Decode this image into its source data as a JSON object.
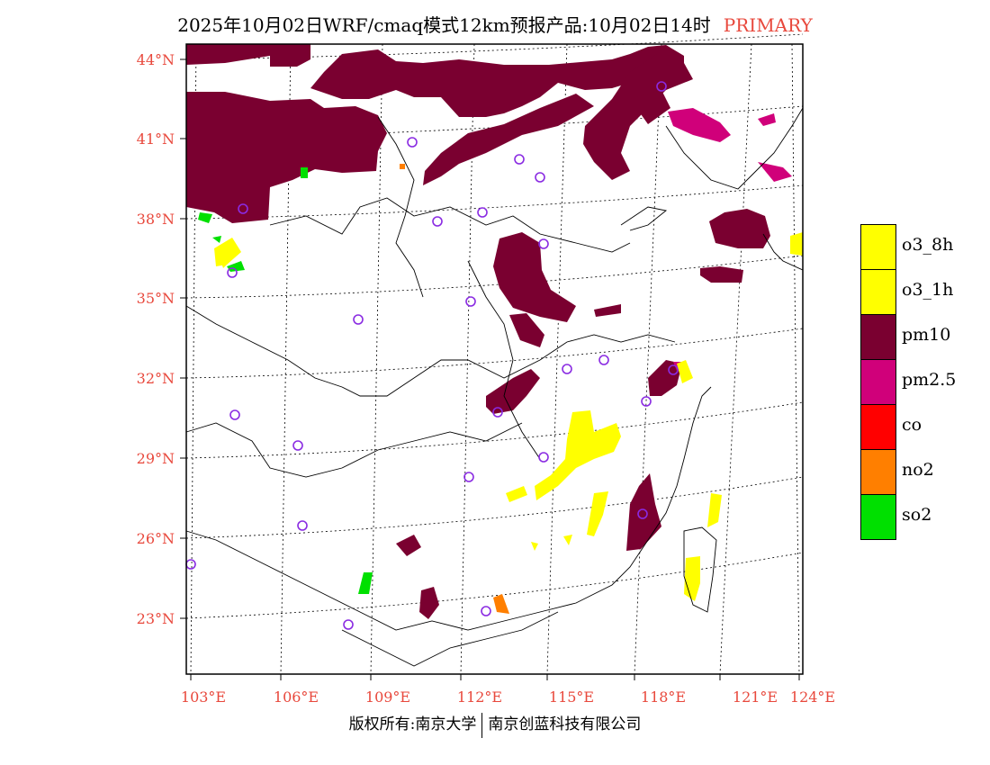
{
  "title": {
    "main": "2025年10月02日WRF/cmaq模式12km预报产品:10月02日14时",
    "tag": "PRIMARY",
    "tag_color": "#e8483c"
  },
  "axes": {
    "lat_labels": [
      "44°N",
      "41°N",
      "38°N",
      "35°N",
      "32°N",
      "29°N",
      "26°N",
      "23°N"
    ],
    "lon_labels": [
      "103°E",
      "106°E",
      "109°E",
      "112°E",
      "115°E",
      "118°E",
      "121°E",
      "124°E"
    ],
    "label_color": "#e8483c"
  },
  "legend": {
    "items": [
      {
        "label": "o3_8h",
        "color": "#ffff00"
      },
      {
        "label": "o3_1h",
        "color": "#ffff00"
      },
      {
        "label": "pm10",
        "color": "#7a0030"
      },
      {
        "label": "pm2.5",
        "color": "#d0007a"
      },
      {
        "label": "co",
        "color": "#ff0000"
      },
      {
        "label": "no2",
        "color": "#ff7f00"
      },
      {
        "label": "so2",
        "color": "#00e000"
      }
    ]
  },
  "footer": {
    "left": "版权所有:南京大学",
    "right": "南京创蓝科技有限公司"
  },
  "colors": {
    "pm10": "#7a0030",
    "pm25": "#d0007a",
    "o3": "#ffff00",
    "so2": "#00e000",
    "no2": "#ff7f00",
    "station": "#8a2be2"
  }
}
